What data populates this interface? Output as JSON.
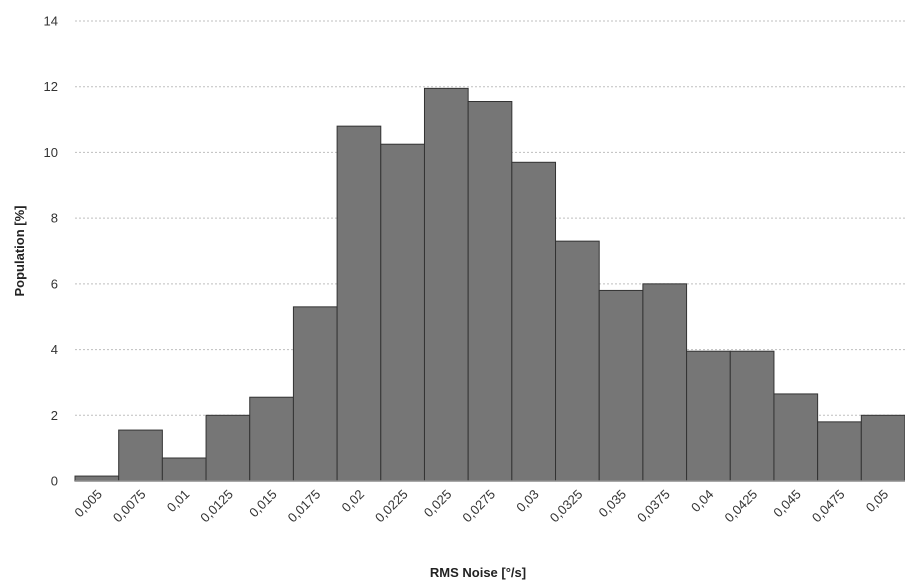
{
  "chart_data": {
    "type": "bar",
    "title": "",
    "xlabel": "RMS Noise [°/s]",
    "ylabel": "Population [%]",
    "categories": [
      "0,005",
      "0,0075",
      "0,01",
      "0,0125",
      "0,015",
      "0,0175",
      "0,02",
      "0,0225",
      "0,025",
      "0,0275",
      "0,03",
      "0,0325",
      "0,035",
      "0,0375",
      "0,04",
      "0,0425",
      "0,045",
      "0,0475",
      "0,05"
    ],
    "values": [
      0.15,
      1.55,
      0.7,
      2.0,
      2.55,
      5.3,
      10.8,
      10.25,
      11.95,
      11.55,
      9.7,
      7.3,
      5.8,
      6.0,
      3.95,
      3.95,
      2.65,
      1.8,
      2.0
    ],
    "yticks": [
      "0",
      "2",
      "4",
      "6",
      "8",
      "10",
      "12",
      "14"
    ],
    "ylim": [
      0,
      14
    ],
    "grid": true,
    "legend": "none",
    "colors": {
      "bar": "#767676",
      "bar_edge": "#333333",
      "grid": "#bfbfbf",
      "axis": "#8c8c8c"
    }
  }
}
